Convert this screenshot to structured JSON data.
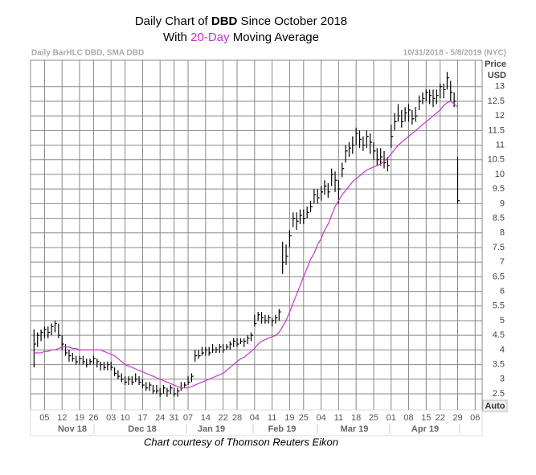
{
  "chart_data": {
    "type": "hlc",
    "title_parts": [
      "Daily Chart of ",
      "DBD",
      " Since October 2018"
    ],
    "subtitle_parts": [
      "With ",
      "20-Day",
      " Moving Average"
    ],
    "subtitle_highlight_color": "#cc33cc",
    "header_left": "Daily BarHLC DBD, SMA DBD",
    "header_right": "10/31/2018 - 5/8/2019 (NYC)",
    "y_axis_label": [
      "Price",
      "USD"
    ],
    "scale_button": "Auto",
    "caption": "Chart courtesy of Thomson Reuters Eikon",
    "month_labels": [
      "Nov 18",
      "Dec 18",
      "Jan 19",
      "Feb 19",
      "Mar 19",
      "Apr 19"
    ],
    "grid": true,
    "xlim": [
      0,
      129
    ],
    "xticks": [
      {
        "value": 4,
        "label": "05"
      },
      {
        "value": 9,
        "label": "12"
      },
      {
        "value": 14,
        "label": "19"
      },
      {
        "value": 18,
        "label": "26"
      },
      {
        "value": 23,
        "label": "03"
      },
      {
        "value": 27,
        "label": "10"
      },
      {
        "value": 32,
        "label": "17"
      },
      {
        "value": 37,
        "label": "24"
      },
      {
        "value": 41,
        "label": "31"
      },
      {
        "value": 45,
        "label": "07"
      },
      {
        "value": 50,
        "label": "14"
      },
      {
        "value": 55,
        "label": "22"
      },
      {
        "value": 59,
        "label": "28"
      },
      {
        "value": 64,
        "label": "04"
      },
      {
        "value": 69,
        "label": "11"
      },
      {
        "value": 74,
        "label": "19"
      },
      {
        "value": 78,
        "label": "25"
      },
      {
        "value": 83,
        "label": "04"
      },
      {
        "value": 88,
        "label": "11"
      },
      {
        "value": 93,
        "label": "18"
      },
      {
        "value": 98,
        "label": "25"
      },
      {
        "value": 103,
        "label": "01"
      },
      {
        "value": 108,
        "label": "08"
      },
      {
        "value": 113,
        "label": "15"
      },
      {
        "value": 117,
        "label": "22"
      },
      {
        "value": 122,
        "label": "29"
      },
      {
        "value": 127,
        "label": "06"
      }
    ],
    "ylim": [
      1.95,
      13.9
    ],
    "yticks": [
      2.5,
      3,
      3.5,
      4,
      4.5,
      5,
      5.5,
      6,
      6.5,
      7,
      7.5,
      8,
      8.5,
      9,
      9.5,
      10,
      10.5,
      11,
      11.5,
      12,
      12.5,
      13
    ],
    "x": [
      1,
      2,
      3,
      4,
      5,
      6,
      7,
      8,
      9,
      10,
      11,
      12,
      13,
      14,
      15,
      16,
      17,
      18,
      19,
      20,
      21,
      22,
      23,
      24,
      25,
      26,
      27,
      28,
      29,
      30,
      31,
      32,
      33,
      34,
      35,
      36,
      37,
      38,
      39,
      40,
      41,
      42,
      43,
      44,
      45,
      46,
      47,
      48,
      49,
      50,
      51,
      52,
      53,
      54,
      55,
      56,
      57,
      58,
      59,
      60,
      61,
      62,
      63,
      64,
      65,
      66,
      67,
      68,
      69,
      70,
      71,
      72,
      73,
      74,
      75,
      76,
      77,
      78,
      79,
      80,
      81,
      82,
      83,
      84,
      85,
      86,
      87,
      88,
      89,
      90,
      91,
      92,
      93,
      94,
      95,
      96,
      97,
      98,
      99,
      100,
      101,
      102,
      103,
      104,
      105,
      106,
      107,
      108,
      109,
      110,
      111,
      112,
      113,
      114,
      115,
      116,
      117,
      118,
      119,
      120,
      121,
      122
    ],
    "series": [
      {
        "color": "#000000",
        "high": [
          4.7,
          4.6,
          4.7,
          4.8,
          4.8,
          4.9,
          5.0,
          4.9,
          4.5,
          4.2,
          4.0,
          3.9,
          3.8,
          3.8,
          3.8,
          3.7,
          3.7,
          3.8,
          3.7,
          3.6,
          3.6,
          3.6,
          3.6,
          3.4,
          3.3,
          3.2,
          3.1,
          3.1,
          3.1,
          3.2,
          3.1,
          3.0,
          2.9,
          2.9,
          2.8,
          2.8,
          2.7,
          2.8,
          2.7,
          2.8,
          2.7,
          2.7,
          2.9,
          2.9,
          3.1,
          3.2,
          4.0,
          4.0,
          4.1,
          4.1,
          4.1,
          4.2,
          4.1,
          4.2,
          4.2,
          4.2,
          4.3,
          4.4,
          4.4,
          4.4,
          4.4,
          4.5,
          4.6,
          5.2,
          5.3,
          5.3,
          5.2,
          5.2,
          5.1,
          5.2,
          5.4,
          7.7,
          7.6,
          8.1,
          8.7,
          8.7,
          8.8,
          8.8,
          8.9,
          9.1,
          9.5,
          9.5,
          9.6,
          9.8,
          9.7,
          10.2,
          10.1,
          9.8,
          10.4,
          11.0,
          11.1,
          11.3,
          11.6,
          11.5,
          11.3,
          11.5,
          11.4,
          11.1,
          10.9,
          10.9,
          10.8,
          10.6,
          11.7,
          12.1,
          12.4,
          12.2,
          12.3,
          12.4,
          12.2,
          12.3,
          12.7,
          12.8,
          12.9,
          12.9,
          12.9,
          12.9,
          13.1,
          13.1,
          13.5,
          13.2,
          12.8,
          10.6
        ],
        "low": [
          3.4,
          4.1,
          4.3,
          4.4,
          4.4,
          4.5,
          4.6,
          4.4,
          4.0,
          3.8,
          3.6,
          3.6,
          3.5,
          3.5,
          3.5,
          3.4,
          3.5,
          3.5,
          3.4,
          3.3,
          3.3,
          3.3,
          3.3,
          3.1,
          3.0,
          2.9,
          2.8,
          2.8,
          2.8,
          2.9,
          2.8,
          2.7,
          2.6,
          2.6,
          2.5,
          2.5,
          2.4,
          2.5,
          2.4,
          2.5,
          2.4,
          2.4,
          2.6,
          2.7,
          2.8,
          2.9,
          3.6,
          3.7,
          3.8,
          3.8,
          3.8,
          3.9,
          3.9,
          3.9,
          3.9,
          4.0,
          4.0,
          4.1,
          4.1,
          4.2,
          4.1,
          4.2,
          4.3,
          4.8,
          5.0,
          4.9,
          4.9,
          4.9,
          4.8,
          4.9,
          5.0,
          6.6,
          6.9,
          7.5,
          8.2,
          8.1,
          8.3,
          8.3,
          8.5,
          8.7,
          9.0,
          9.0,
          9.1,
          9.3,
          9.2,
          9.6,
          9.4,
          9.0,
          9.9,
          10.4,
          10.6,
          10.7,
          11.0,
          10.9,
          10.8,
          10.9,
          10.7,
          10.5,
          10.3,
          10.3,
          10.2,
          10.1,
          10.9,
          11.5,
          11.8,
          11.6,
          11.8,
          11.8,
          11.7,
          11.8,
          12.2,
          12.4,
          12.5,
          12.4,
          12.3,
          12.4,
          12.6,
          12.6,
          12.9,
          12.5,
          12.3,
          9.0
        ],
        "close": [
          4.2,
          4.5,
          4.6,
          4.7,
          4.6,
          4.8,
          4.9,
          4.5,
          4.2,
          3.9,
          3.8,
          3.7,
          3.6,
          3.7,
          3.6,
          3.5,
          3.6,
          3.7,
          3.6,
          3.5,
          3.4,
          3.5,
          3.4,
          3.2,
          3.1,
          3.0,
          2.9,
          3.0,
          2.9,
          3.0,
          2.9,
          2.8,
          2.7,
          2.8,
          2.6,
          2.6,
          2.5,
          2.7,
          2.6,
          2.7,
          2.5,
          2.6,
          2.7,
          2.8,
          2.9,
          3.1,
          3.8,
          3.8,
          3.9,
          4.0,
          3.9,
          4.0,
          4.0,
          4.1,
          4.0,
          4.1,
          4.2,
          4.3,
          4.2,
          4.3,
          4.3,
          4.4,
          4.5,
          4.9,
          5.2,
          5.1,
          5.0,
          5.1,
          5.0,
          5.1,
          5.3,
          7.0,
          7.2,
          7.9,
          8.5,
          8.4,
          8.6,
          8.5,
          8.7,
          8.9,
          9.3,
          9.2,
          9.4,
          9.6,
          9.4,
          10.0,
          9.8,
          9.5,
          10.2,
          10.8,
          10.9,
          11.0,
          11.4,
          11.2,
          11.0,
          11.3,
          11.1,
          10.8,
          10.5,
          10.6,
          10.4,
          10.3,
          11.3,
          11.8,
          12.0,
          11.8,
          12.1,
          12.2,
          11.9,
          12.0,
          12.5,
          12.6,
          12.8,
          12.7,
          12.6,
          12.7,
          13.0,
          12.9,
          13.3,
          12.8,
          12.5,
          9.1
        ]
      },
      {
        "color": "#cc33cc",
        "values": [
          3.9,
          3.9,
          3.9,
          3.95,
          3.95,
          4.0,
          4.0,
          4.05,
          4.1,
          4.1,
          4.1,
          4.05,
          4.05,
          4.0,
          4.0,
          4.0,
          4.0,
          4.0,
          4.0,
          4.0,
          3.95,
          3.9,
          3.85,
          3.8,
          3.7,
          3.6,
          3.5,
          3.45,
          3.4,
          3.35,
          3.3,
          3.25,
          3.2,
          3.15,
          3.1,
          3.05,
          3.0,
          2.95,
          2.9,
          2.85,
          2.8,
          2.75,
          2.7,
          2.7,
          2.7,
          2.75,
          2.8,
          2.85,
          2.9,
          2.95,
          3.0,
          3.05,
          3.1,
          3.15,
          3.2,
          3.3,
          3.4,
          3.5,
          3.6,
          3.7,
          3.75,
          3.85,
          3.95,
          4.05,
          4.2,
          4.3,
          4.35,
          4.4,
          4.45,
          4.5,
          4.6,
          4.8,
          5.0,
          5.3,
          5.6,
          5.9,
          6.2,
          6.5,
          6.8,
          7.1,
          7.3,
          7.6,
          7.8,
          8.1,
          8.3,
          8.6,
          8.9,
          9.1,
          9.3,
          9.45,
          9.6,
          9.75,
          9.85,
          9.95,
          10.05,
          10.15,
          10.2,
          10.25,
          10.3,
          10.35,
          10.45,
          10.55,
          10.7,
          10.85,
          11.0,
          11.1,
          11.2,
          11.3,
          11.4,
          11.5,
          11.6,
          11.7,
          11.8,
          11.9,
          12.0,
          12.1,
          12.2,
          12.35,
          12.45,
          12.5,
          12.4,
          12.3
        ]
      }
    ]
  }
}
